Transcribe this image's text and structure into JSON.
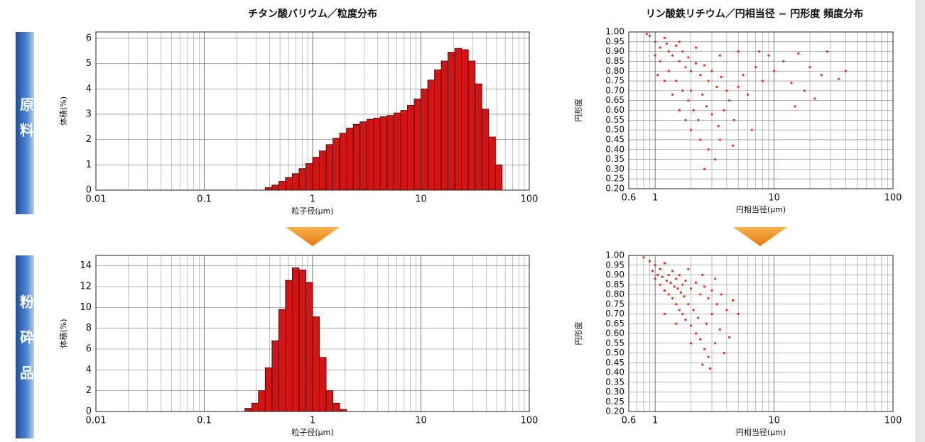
{
  "row_labels": [
    "原料",
    "粉砕品"
  ],
  "chart_data": [
    {
      "type": "histogram",
      "title": "チタン酸バリウム／粒度分布",
      "xlabel": "粒子径(μm)",
      "ylabel": "体積(%)",
      "xscale": "log",
      "grid": true,
      "color": "#d21414",
      "xlim": [
        0.01,
        100
      ],
      "xticks": [
        0.01,
        0.1,
        1,
        10,
        100
      ],
      "ylim": [
        0,
        6.25
      ],
      "yticks": [
        0,
        1,
        2,
        3,
        4,
        5,
        6
      ],
      "bins": [
        0.365,
        0.422,
        0.487,
        0.562,
        0.649,
        0.75,
        0.866,
        1,
        1.155,
        1.334,
        1.54,
        1.778,
        2.054,
        2.371,
        2.738,
        3.162,
        3.652,
        4.217,
        4.87,
        5.623,
        6.494,
        7.499,
        8.66,
        10,
        11.55,
        13.34,
        15.4,
        17.78,
        20.54,
        23.71,
        27.38,
        31.62,
        36.52,
        42.17,
        48.7,
        56.23
      ],
      "values": [
        0.1,
        0.2,
        0.35,
        0.5,
        0.65,
        0.85,
        1.05,
        1.3,
        1.55,
        1.8,
        2.05,
        2.25,
        2.45,
        2.6,
        2.7,
        2.8,
        2.85,
        2.9,
        2.95,
        3.05,
        3.15,
        3.35,
        3.6,
        4.0,
        4.35,
        4.75,
        5.1,
        5.45,
        5.6,
        5.55,
        5.1,
        4.2,
        3.2,
        2.1,
        1.0
      ]
    },
    {
      "type": "scatter",
      "title": "リン酸鉄リチウム／円相当径 − 円形度 頻度分布",
      "xlabel": "円相当径(μm)",
      "ylabel": "円形度",
      "xscale": "log",
      "grid": true,
      "color": "#e8321e",
      "xlim": [
        0.6,
        100
      ],
      "xticks": [
        0.6,
        1,
        10,
        100
      ],
      "ylim": [
        0.2,
        1.0
      ],
      "yticks": [
        {
          "value": 0.2,
          "label": "0.20"
        },
        0.25,
        {
          "value": 0.3,
          "label": "0.30"
        },
        0.35,
        {
          "value": 0.4,
          "label": "0.40"
        },
        0.45,
        {
          "value": 0.5,
          "label": "0.50"
        },
        0.55,
        {
          "value": 0.6,
          "label": "0.60"
        },
        0.65,
        {
          "value": 0.7,
          "label": "0.70"
        },
        0.75,
        {
          "value": 0.8,
          "label": "0.80"
        },
        0.85,
        {
          "value": 0.9,
          "label": "0.90"
        },
        0.95,
        {
          "value": 1.0,
          "label": "1.00"
        }
      ],
      "x": [
        0.9,
        1.0,
        1.1,
        1.2,
        1.3,
        1.4,
        1.5,
        1.6,
        1.7,
        1.8,
        1.9,
        2.0,
        2.2,
        2.4,
        2.6,
        2.8,
        3.0,
        3.3,
        3.6,
        4.0,
        1.1,
        1.3,
        1.5,
        1.7,
        1.9,
        2.1,
        2.3,
        2.5,
        2.7,
        3.0,
        3.4,
        3.8,
        4.2,
        4.6,
        5.0,
        5.5,
        6.0,
        7.0,
        8.0,
        9.0,
        10.0,
        12.0,
        14.0,
        16.0,
        18.0,
        20.0,
        25.0,
        28.0,
        35.0,
        40.0,
        1.2,
        1.4,
        1.6,
        1.8,
        2.0,
        2.4,
        2.8,
        3.2,
        2.6,
        3.5,
        4.5,
        6.5,
        1.0,
        0.85,
        1.25,
        2.2,
        3.5,
        5.0,
        7.5,
        1.6,
        1.05,
        2.0,
        15.0,
        22.0
      ],
      "values": [
        0.98,
        0.95,
        0.92,
        0.97,
        0.9,
        0.88,
        0.93,
        0.85,
        0.9,
        0.82,
        0.87,
        0.8,
        0.84,
        0.78,
        0.83,
        0.75,
        0.8,
        0.72,
        0.77,
        0.7,
        0.85,
        0.8,
        0.75,
        0.7,
        0.65,
        0.6,
        0.55,
        0.68,
        0.62,
        0.58,
        0.52,
        0.6,
        0.65,
        0.55,
        0.72,
        0.78,
        0.68,
        0.82,
        0.75,
        0.88,
        0.8,
        0.85,
        0.74,
        0.89,
        0.7,
        0.82,
        0.78,
        0.9,
        0.76,
        0.8,
        0.75,
        0.68,
        0.6,
        0.55,
        0.5,
        0.45,
        0.4,
        0.35,
        0.3,
        0.45,
        0.42,
        0.5,
        0.88,
        0.99,
        0.94,
        0.92,
        0.88,
        0.9,
        0.9,
        0.95,
        0.78,
        0.7,
        0.62,
        0.66
      ]
    },
    {
      "type": "histogram",
      "xlabel": "粒子径(μm)",
      "ylabel": "体積(%)",
      "xscale": "log",
      "grid": true,
      "color": "#d21414",
      "xlim": [
        0.01,
        100
      ],
      "xticks": [
        0.01,
        0.1,
        1,
        10,
        100
      ],
      "ylim": [
        0,
        15
      ],
      "yticks": [
        0,
        2,
        4,
        6,
        8,
        10,
        12,
        14
      ],
      "bins": [
        0.237,
        0.274,
        0.316,
        0.365,
        0.422,
        0.487,
        0.562,
        0.649,
        0.75,
        0.866,
        1,
        1.155,
        1.334,
        1.54,
        1.778,
        2.054
      ],
      "values": [
        0.3,
        0.8,
        2.0,
        4.2,
        6.8,
        9.8,
        12.6,
        13.8,
        13.6,
        12.4,
        9.1,
        5.2,
        2.0,
        0.8,
        0.2
      ]
    },
    {
      "type": "scatter",
      "xlabel": "円相当径(μm)",
      "ylabel": "円形度",
      "xscale": "log",
      "grid": true,
      "color": "#e8321e",
      "xlim": [
        0.6,
        100
      ],
      "xticks": [
        0.6,
        1,
        10,
        100
      ],
      "ylim": [
        0.2,
        1.0
      ],
      "yticks": [
        {
          "value": 0.2,
          "label": "0.20"
        },
        0.25,
        {
          "value": 0.3,
          "label": "0.30"
        },
        0.35,
        {
          "value": 0.4,
          "label": "0.40"
        },
        0.45,
        {
          "value": 0.5,
          "label": "0.50"
        },
        0.55,
        {
          "value": 0.6,
          "label": "0.60"
        },
        0.65,
        {
          "value": 0.7,
          "label": "0.70"
        },
        0.75,
        {
          "value": 0.8,
          "label": "0.80"
        },
        0.85,
        {
          "value": 0.9,
          "label": "0.90"
        },
        0.95,
        {
          "value": 1.0,
          "label": "1.00"
        }
      ],
      "x": [
        0.8,
        0.9,
        1.0,
        1.1,
        1.2,
        1.3,
        1.4,
        1.5,
        1.6,
        1.7,
        1.8,
        2.0,
        2.2,
        2.4,
        2.6,
        2.8,
        3.0,
        3.3,
        3.6,
        4.0,
        4.5,
        5.0,
        1.0,
        1.1,
        1.2,
        1.3,
        1.4,
        1.5,
        1.6,
        1.7,
        1.8,
        2.0,
        2.2,
        2.4,
        2.6,
        2.8,
        2.5,
        3.2,
        3.5,
        4.2,
        1.9,
        2.1,
        2.3,
        2.7,
        3.0,
        0.95,
        1.05,
        1.15,
        1.25,
        1.35,
        1.45,
        1.55,
        1.65,
        1.75,
        2.9,
        3.8,
        1.9,
        2.5,
        3.2,
        1.2,
        1.5,
        2.0
      ],
      "values": [
        0.99,
        0.97,
        0.95,
        0.93,
        0.96,
        0.9,
        0.92,
        0.88,
        0.9,
        0.85,
        0.87,
        0.83,
        0.86,
        0.8,
        0.84,
        0.78,
        0.82,
        0.75,
        0.8,
        0.72,
        0.77,
        0.7,
        0.88,
        0.85,
        0.82,
        0.8,
        0.78,
        0.75,
        0.72,
        0.7,
        0.67,
        0.64,
        0.6,
        0.57,
        0.52,
        0.48,
        0.44,
        0.55,
        0.62,
        0.58,
        0.75,
        0.72,
        0.68,
        0.65,
        0.7,
        0.92,
        0.9,
        0.89,
        0.87,
        0.86,
        0.84,
        0.83,
        0.81,
        0.79,
        0.42,
        0.5,
        0.93,
        0.9,
        0.88,
        0.7,
        0.65,
        0.55
      ]
    }
  ]
}
